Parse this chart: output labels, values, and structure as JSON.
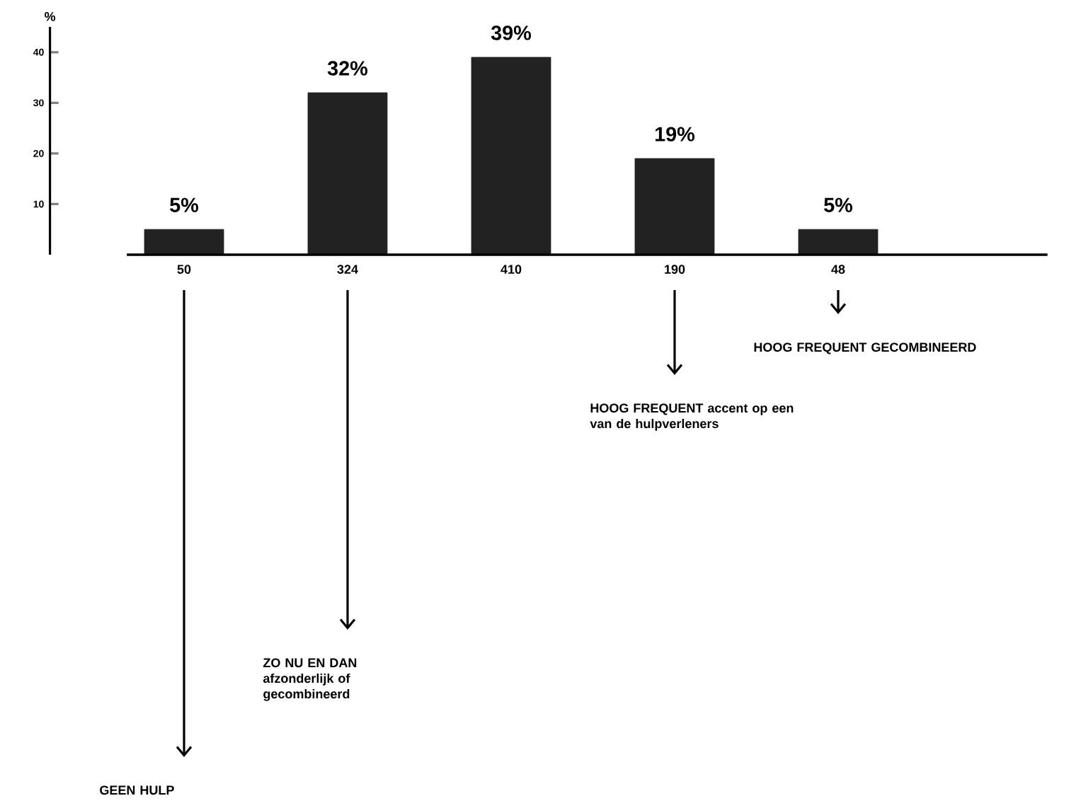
{
  "chart_data": {
    "type": "bar",
    "ylabel": "%",
    "categories": [
      "50",
      "324",
      "410",
      "190",
      "48"
    ],
    "values": [
      5,
      32,
      39,
      19,
      5
    ],
    "value_labels": [
      "5%",
      "32%",
      "39%",
      "19%",
      "5%"
    ],
    "color": "#222222",
    "ylim": [
      0,
      45
    ],
    "yticks": [
      10,
      20,
      30,
      40
    ],
    "grid": false,
    "annotations": [
      "GEEN HULP",
      "**ZO NU EN DAN** afzonderlijk of gecombineerd",
      "**HOOG FREQUENT** accent op een van de hulpverleners",
      "HOOG FREQUENT GECOMBINEERD"
    ]
  }
}
